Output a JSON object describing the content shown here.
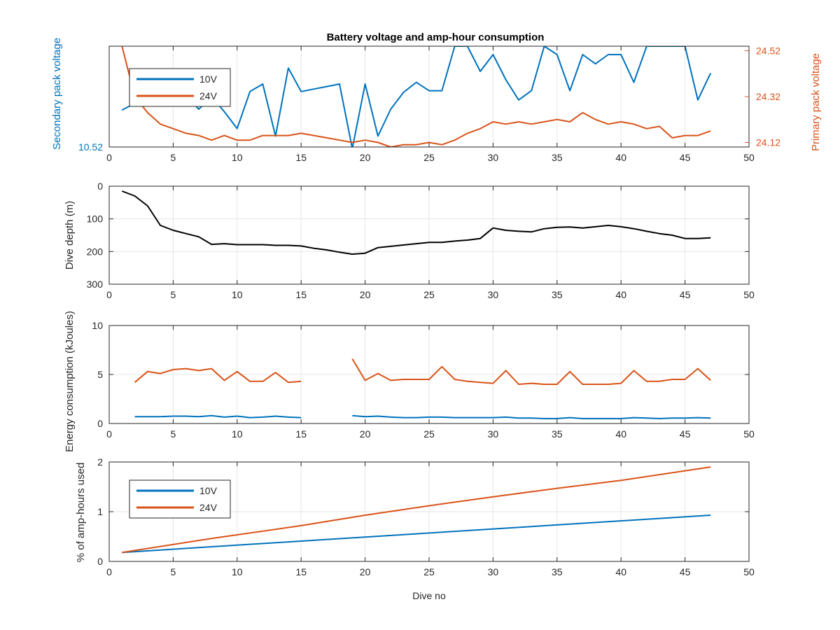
{
  "figure_title": "Battery voltage and amp-hour consumption",
  "colors": {
    "blue": "#0072BD",
    "orange": "#D95319",
    "black": "#000000",
    "grid": "#e6e6e6",
    "axis": "#262626"
  },
  "chart_data": [
    {
      "type": "line",
      "title": "Battery voltage and amp-hour consumption",
      "xlabel": "",
      "ylabel_left": "Secondary pack voltage",
      "ylabel_right": "Primary pack voltage",
      "xlim": [
        0,
        50
      ],
      "xticks": [
        "0",
        "5",
        "10",
        "15",
        "20",
        "25",
        "30",
        "35",
        "40",
        "45",
        "50"
      ],
      "ylim_left": [
        10.52,
        10.64
      ],
      "yticks_left": [
        {
          "v": 10.52,
          "label": "10.52"
        }
      ],
      "ylim_right": [
        24.1,
        24.54
      ],
      "yticks_right": [
        {
          "v": 24.12,
          "label": "24.12"
        },
        {
          "v": 24.32,
          "label": "24.32"
        },
        {
          "v": 24.52,
          "label": "24.52"
        }
      ],
      "grid": true,
      "legend": {
        "placement": "top-left",
        "entries": [
          "10V",
          "24V"
        ]
      },
      "series": [
        {
          "name": "10V",
          "axis": "left",
          "color": "#0072BD",
          "x": [
            1,
            2,
            3,
            4,
            5,
            6,
            7,
            8,
            9,
            10,
            11,
            12,
            13,
            14,
            15,
            16,
            17,
            18,
            19,
            20,
            21,
            22,
            23,
            24,
            25,
            26,
            27,
            28,
            29,
            30,
            31,
            32,
            33,
            34,
            35,
            36,
            37,
            38,
            39,
            40,
            41,
            42,
            43,
            44,
            45,
            46,
            47
          ],
          "y": [
            10.564,
            10.572,
            10.58,
            10.587,
            10.59,
            10.581,
            10.565,
            10.58,
            10.562,
            10.542,
            10.586,
            10.595,
            10.533,
            10.614,
            10.586,
            10.589,
            10.592,
            10.595,
            10.518,
            10.595,
            10.533,
            10.565,
            10.585,
            10.597,
            10.587,
            10.587,
            10.64,
            10.64,
            10.61,
            10.63,
            10.6,
            10.576,
            10.587,
            10.64,
            10.63,
            10.587,
            10.63,
            10.619,
            10.63,
            10.63,
            10.597,
            10.64,
            10.64,
            10.64,
            10.64,
            10.576,
            10.608
          ]
        },
        {
          "name": "24V",
          "axis": "right",
          "color": "#D95319",
          "x": [
            1,
            2,
            3,
            4,
            5,
            6,
            7,
            8,
            9,
            10,
            11,
            12,
            13,
            14,
            15,
            16,
            17,
            18,
            19,
            20,
            21,
            22,
            23,
            24,
            25,
            26,
            27,
            28,
            29,
            30,
            31,
            32,
            33,
            34,
            35,
            36,
            37,
            38,
            39,
            40,
            41,
            42,
            43,
            44,
            45,
            46,
            47
          ],
          "y": [
            24.54,
            24.32,
            24.25,
            24.2,
            24.18,
            24.16,
            24.15,
            24.13,
            24.15,
            24.13,
            24.13,
            24.15,
            24.15,
            24.15,
            24.16,
            24.15,
            24.14,
            24.13,
            24.12,
            24.13,
            24.12,
            24.1,
            24.11,
            24.11,
            24.12,
            24.11,
            24.13,
            24.16,
            24.18,
            24.21,
            24.2,
            24.21,
            24.2,
            24.21,
            24.22,
            24.21,
            24.25,
            24.22,
            24.2,
            24.21,
            24.2,
            24.18,
            24.19,
            24.14,
            24.15,
            24.15,
            24.17
          ]
        }
      ]
    },
    {
      "type": "line",
      "title": "",
      "xlabel": "",
      "ylabel": "Dive depth (m)",
      "xlim": [
        0,
        50
      ],
      "xticks": [
        "0",
        "5",
        "10",
        "15",
        "20",
        "25",
        "30",
        "35",
        "40",
        "45",
        "50"
      ],
      "ylim": [
        0,
        300
      ],
      "y_reversed": true,
      "yticks": [
        {
          "v": 0,
          "label": "0"
        },
        {
          "v": 100,
          "label": "100"
        },
        {
          "v": 200,
          "label": "200"
        },
        {
          "v": 300,
          "label": "300"
        }
      ],
      "grid": true,
      "series": [
        {
          "color": "#000000",
          "x": [
            1,
            2,
            3,
            4,
            5,
            6,
            7,
            8,
            9,
            10,
            11,
            12,
            13,
            14,
            15,
            16,
            17,
            18,
            19,
            20,
            21,
            22,
            23,
            24,
            25,
            26,
            27,
            28,
            29,
            30,
            31,
            32,
            33,
            34,
            35,
            36,
            37,
            38,
            39,
            40,
            41,
            42,
            43,
            44,
            45,
            46,
            47
          ],
          "y": [
            15,
            30,
            60,
            120,
            135,
            145,
            155,
            178,
            176,
            179,
            179,
            179,
            181,
            181,
            183,
            190,
            195,
            202,
            208,
            205,
            188,
            184,
            180,
            176,
            172,
            172,
            168,
            165,
            160,
            128,
            135,
            138,
            140,
            130,
            126,
            125,
            128,
            124,
            120,
            124,
            130,
            138,
            145,
            150,
            160,
            160,
            158
          ]
        }
      ]
    },
    {
      "type": "line",
      "title": "",
      "xlabel": "",
      "ylabel": "Energy consumption (kJoules)",
      "xlim": [
        0,
        50
      ],
      "xticks": [
        "0",
        "5",
        "10",
        "15",
        "20",
        "25",
        "30",
        "35",
        "40",
        "45",
        "50"
      ],
      "ylim": [
        0,
        10
      ],
      "yticks": [
        {
          "v": 0,
          "label": "0"
        },
        {
          "v": 5,
          "label": "5"
        },
        {
          "v": 10,
          "label": "10"
        }
      ],
      "grid": true,
      "series": [
        {
          "color": "#0072BD",
          "x": [
            2,
            3,
            4,
            5,
            6,
            7,
            8,
            9,
            10,
            11,
            12,
            13,
            14,
            15,
            null,
            19,
            20,
            21,
            22,
            23,
            24,
            25,
            26,
            27,
            28,
            29,
            30,
            31,
            32,
            33,
            34,
            35,
            36,
            37,
            38,
            39,
            40,
            41,
            42,
            43,
            44,
            45,
            46,
            47
          ],
          "y": [
            0.7,
            0.7,
            0.7,
            0.75,
            0.75,
            0.7,
            0.8,
            0.65,
            0.75,
            0.6,
            0.65,
            0.75,
            0.65,
            0.6,
            null,
            0.8,
            0.7,
            0.75,
            0.65,
            0.6,
            0.6,
            0.65,
            0.65,
            0.6,
            0.6,
            0.6,
            0.6,
            0.65,
            0.55,
            0.55,
            0.5,
            0.5,
            0.6,
            0.5,
            0.5,
            0.5,
            0.5,
            0.6,
            0.55,
            0.5,
            0.55,
            0.55,
            0.6,
            0.55
          ]
        },
        {
          "color": "#D95319",
          "x": [
            2,
            3,
            4,
            5,
            6,
            7,
            8,
            9,
            10,
            11,
            12,
            13,
            14,
            15,
            null,
            19,
            20,
            21,
            22,
            23,
            24,
            25,
            26,
            27,
            28,
            29,
            30,
            31,
            32,
            33,
            34,
            35,
            36,
            37,
            38,
            39,
            40,
            41,
            42,
            43,
            44,
            45,
            46,
            47
          ],
          "y": [
            4.2,
            5.3,
            5.1,
            5.5,
            5.6,
            5.4,
            5.6,
            4.4,
            5.3,
            4.3,
            4.3,
            5.2,
            4.2,
            4.3,
            null,
            6.6,
            4.4,
            5.1,
            4.4,
            4.5,
            4.5,
            4.5,
            5.8,
            4.5,
            4.3,
            4.2,
            4.1,
            5.4,
            4.0,
            4.1,
            4.0,
            4.0,
            5.3,
            4.0,
            4.0,
            4.0,
            4.1,
            5.4,
            4.3,
            4.3,
            4.5,
            4.5,
            5.6,
            4.4
          ]
        }
      ]
    },
    {
      "type": "line",
      "title": "",
      "xlabel": "Dive no",
      "ylabel": "% of amp-hours used",
      "xlim": [
        0,
        50
      ],
      "xticks": [
        "0",
        "5",
        "10",
        "15",
        "20",
        "25",
        "30",
        "35",
        "40",
        "45",
        "50"
      ],
      "ylim": [
        0,
        2
      ],
      "yticks": [
        {
          "v": 0,
          "label": "0"
        },
        {
          "v": 1,
          "label": "1"
        },
        {
          "v": 2,
          "label": "2"
        }
      ],
      "grid": true,
      "legend": {
        "placement": "top-left",
        "entries": [
          "10V",
          "24V"
        ]
      },
      "series": [
        {
          "name": "10V",
          "color": "#0072BD",
          "x": [
            1,
            47
          ],
          "y": [
            0.18,
            0.93
          ]
        },
        {
          "name": "24V",
          "color": "#D95319",
          "x": [
            1,
            8,
            15,
            20,
            25,
            30,
            35,
            40,
            47
          ],
          "y": [
            0.18,
            0.46,
            0.72,
            0.93,
            1.12,
            1.3,
            1.47,
            1.63,
            1.9
          ]
        }
      ]
    }
  ]
}
